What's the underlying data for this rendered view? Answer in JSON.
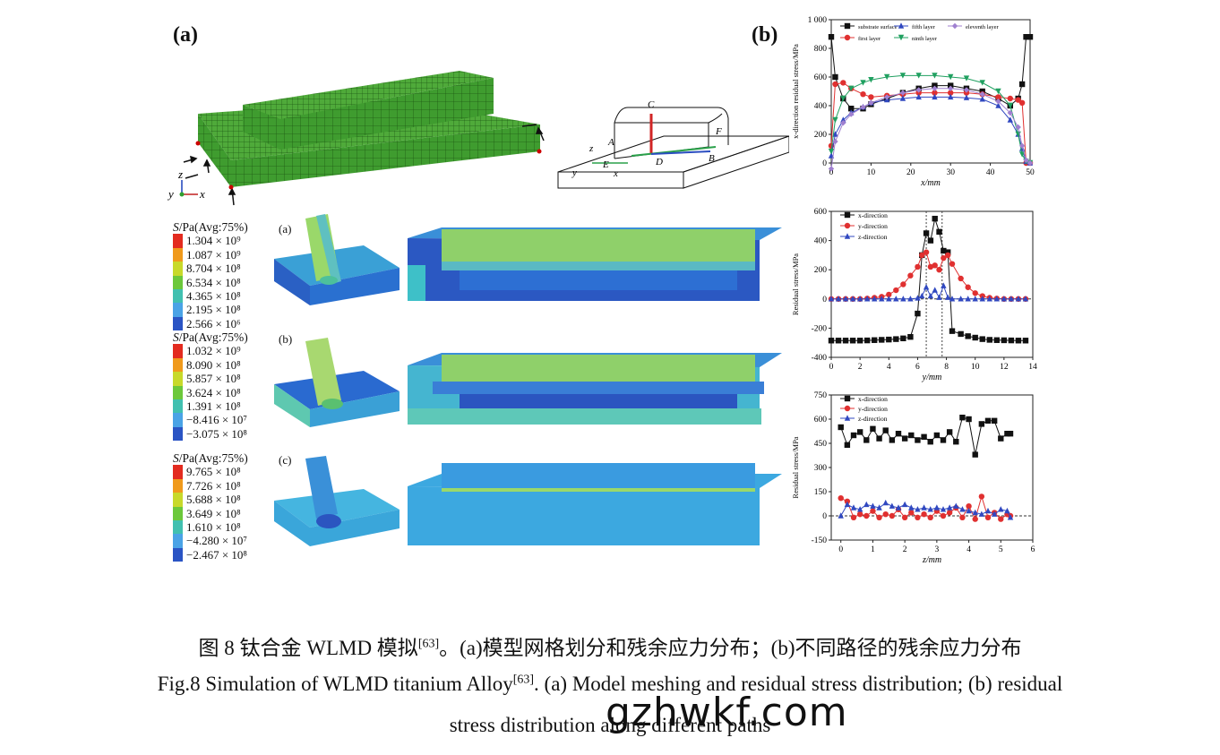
{
  "panels": {
    "a": "(a)",
    "b": "(b)"
  },
  "axis_triad": {
    "z": "z",
    "y": "y",
    "x": "x"
  },
  "schematic_points": [
    "C",
    "A",
    "F",
    "B",
    "D",
    "E",
    "z",
    "y",
    "x"
  ],
  "contours": [
    {
      "label": "(a)",
      "title_sym": "S",
      "title_rest": "/Pa(Avg:75%)",
      "values": [
        "1.304 × 10⁹",
        "1.087 × 10⁹",
        "8.704 × 10⁸",
        "6.534 × 10⁸",
        "4.365 × 10⁸",
        "2.195 × 10⁸",
        "2.566 × 10⁶"
      ]
    },
    {
      "label": "(b)",
      "title_sym": "S",
      "title_rest": "/Pa(Avg:75%)",
      "values": [
        "1.032 × 10⁹",
        "8.090 × 10⁸",
        "5.857 × 10⁸",
        "3.624 × 10⁸",
        "1.391 × 10⁸",
        "−8.416 × 10⁷",
        "−3.075 × 10⁸"
      ]
    },
    {
      "label": "(c)",
      "title_sym": "S",
      "title_rest": "/Pa(Avg:75%)",
      "values": [
        "9.765 × 10⁸",
        "7.726 × 10⁸",
        "5.688 × 10⁸",
        "3.649 × 10⁸",
        "1.610 × 10⁸",
        "−4.280 × 10⁷",
        "−2.467 × 10⁸"
      ]
    }
  ],
  "legend_colors": [
    "#e32b1f",
    "#f09a1c",
    "#c8d92a",
    "#6cc83b",
    "#41c0b0",
    "#4aa3e6",
    "#2a54c4"
  ],
  "chart_data": [
    {
      "type": "line",
      "xlabel": "x/mm",
      "ylabel": "x-direction residual stress/MPa",
      "xlim": [
        0,
        50
      ],
      "ylim": [
        0,
        1000
      ],
      "xticks": [
        0,
        10,
        20,
        30,
        40,
        50
      ],
      "yticks": [
        0,
        200,
        400,
        600,
        800,
        1000
      ],
      "x": [
        0,
        1,
        3,
        5,
        8,
        10,
        14,
        18,
        22,
        26,
        30,
        34,
        38,
        42,
        45,
        47,
        48,
        49,
        50
      ],
      "series": [
        {
          "name": "substrate surface",
          "color": "#111111",
          "marker": "square",
          "values": [
            880,
            600,
            450,
            380,
            380,
            410,
            450,
            490,
            520,
            540,
            540,
            520,
            500,
            450,
            400,
            450,
            550,
            880,
            880
          ]
        },
        {
          "name": "first layer",
          "color": "#e03030",
          "marker": "circle",
          "values": [
            120,
            550,
            560,
            520,
            480,
            460,
            470,
            480,
            490,
            490,
            490,
            490,
            480,
            460,
            450,
            440,
            420,
            0,
            0
          ]
        },
        {
          "name": "fifth layer",
          "color": "#3048c0",
          "marker": "triangle",
          "values": [
            50,
            200,
            300,
            350,
            390,
            420,
            440,
            450,
            460,
            460,
            460,
            455,
            445,
            400,
            300,
            200,
            100,
            10,
            0
          ]
        },
        {
          "name": "ninth layer",
          "color": "#20a060",
          "marker": "triangle-down",
          "values": [
            80,
            300,
            450,
            520,
            560,
            580,
            600,
            610,
            610,
            610,
            600,
            590,
            560,
            500,
            400,
            200,
            60,
            10,
            0
          ]
        },
        {
          "name": "eleventh layer",
          "color": "#a080d0",
          "marker": "diamond",
          "values": [
            -40,
            150,
            280,
            340,
            390,
            420,
            460,
            490,
            510,
            520,
            520,
            510,
            480,
            430,
            350,
            250,
            120,
            20,
            0
          ]
        }
      ]
    },
    {
      "type": "line",
      "xlabel": "y/mm",
      "ylabel": "Residual stress/MPa",
      "xlim": [
        0,
        14
      ],
      "ylim": [
        -400,
        600
      ],
      "xticks": [
        0,
        2,
        4,
        6,
        8,
        10,
        12,
        14
      ],
      "yticks": [
        -400,
        -200,
        0,
        200,
        400,
        600
      ],
      "x": [
        0,
        0.5,
        1,
        1.5,
        2,
        2.5,
        3,
        3.5,
        4,
        4.5,
        5,
        5.5,
        6,
        6.3,
        6.6,
        6.9,
        7.2,
        7.5,
        7.8,
        8.1,
        8.4,
        9,
        9.5,
        10,
        10.5,
        11,
        11.5,
        12,
        12.5,
        13,
        13.5
      ],
      "series": [
        {
          "name": "x-direction",
          "color": "#111111",
          "marker": "square",
          "values": [
            -285,
            -285,
            -285,
            -285,
            -285,
            -284,
            -282,
            -280,
            -278,
            -275,
            -270,
            -260,
            -100,
            300,
            450,
            400,
            550,
            460,
            330,
            320,
            -220,
            -240,
            -255,
            -265,
            -275,
            -280,
            -282,
            -283,
            -284,
            -285,
            -285
          ]
        },
        {
          "name": "y-direction",
          "color": "#e03030",
          "marker": "circle",
          "values": [
            0,
            0,
            0,
            0,
            0,
            3,
            8,
            15,
            30,
            60,
            100,
            160,
            220,
            300,
            320,
            220,
            230,
            200,
            280,
            300,
            240,
            140,
            80,
            40,
            20,
            8,
            3,
            0,
            0,
            0,
            0
          ]
        },
        {
          "name": "z-direction",
          "color": "#3048c0",
          "marker": "triangle",
          "values": [
            0,
            0,
            0,
            0,
            0,
            0,
            0,
            0,
            0,
            0,
            0,
            0,
            5,
            20,
            80,
            20,
            60,
            10,
            90,
            10,
            0,
            0,
            0,
            0,
            0,
            0,
            0,
            0,
            0,
            0,
            0
          ]
        }
      ]
    },
    {
      "type": "line",
      "xlabel": "z/mm",
      "ylabel": "Residual stress/MPa",
      "xlim": [
        -0.3,
        6
      ],
      "ylim": [
        -150,
        750
      ],
      "xticks": [
        0,
        1,
        2,
        3,
        4,
        5,
        6
      ],
      "yticks": [
        -150,
        0,
        150,
        300,
        450,
        600,
        750
      ],
      "x": [
        0,
        0.2,
        0.4,
        0.6,
        0.8,
        1.0,
        1.2,
        1.4,
        1.6,
        1.8,
        2.0,
        2.2,
        2.4,
        2.6,
        2.8,
        3.0,
        3.2,
        3.4,
        3.6,
        3.8,
        4.0,
        4.2,
        4.4,
        4.6,
        4.8,
        5.0,
        5.2,
        5.3
      ],
      "series": [
        {
          "name": "x-direction",
          "color": "#111111",
          "marker": "square",
          "values": [
            550,
            440,
            500,
            520,
            470,
            540,
            480,
            530,
            470,
            510,
            480,
            500,
            470,
            490,
            460,
            500,
            470,
            520,
            460,
            610,
            600,
            380,
            570,
            590,
            590,
            480,
            510,
            510
          ]
        },
        {
          "name": "y-direction",
          "color": "#e03030",
          "marker": "circle",
          "values": [
            110,
            90,
            -10,
            10,
            0,
            30,
            -10,
            10,
            0,
            40,
            -10,
            20,
            -10,
            10,
            -10,
            30,
            0,
            20,
            50,
            -10,
            60,
            -20,
            120,
            -10,
            20,
            -20,
            10,
            0
          ]
        },
        {
          "name": "z-direction",
          "color": "#3048c0",
          "marker": "triangle",
          "values": [
            0,
            70,
            50,
            40,
            70,
            60,
            50,
            80,
            60,
            50,
            70,
            50,
            40,
            50,
            40,
            50,
            40,
            50,
            60,
            40,
            30,
            20,
            10,
            30,
            10,
            40,
            30,
            -10
          ]
        }
      ]
    }
  ],
  "caption": {
    "cn_main": "图 8 钛合金 WLMD 模拟",
    "cn_ref": "[63]",
    "cn_rest": "。(a)模型网格划分和残余应力分布；(b)不同路径的残余应力分布",
    "en_main": "Fig.8 Simulation of WLMD titanium Alloy",
    "en_ref": "[63]",
    "en_rest": ". (a) Model meshing and residual stress distribution; (b) residual",
    "en_line2": "stress distribution along different paths"
  },
  "watermark": "gzhwkf.com"
}
